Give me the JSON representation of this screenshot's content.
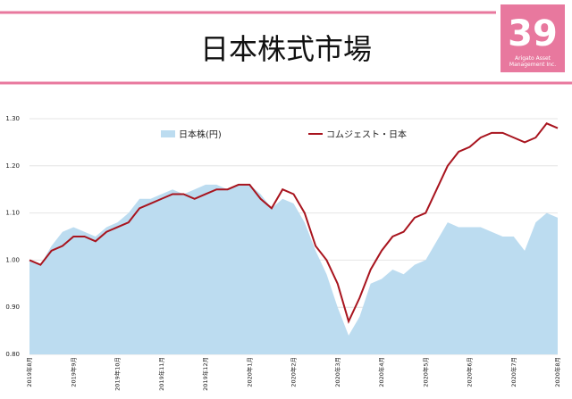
{
  "header": {
    "title": "日本株式市場",
    "logo_number": "39",
    "logo_text": "Arigato Asset Management Inc."
  },
  "chart_data": {
    "type": "line",
    "categories": [
      "2019年8月",
      null,
      null,
      null,
      "2019年9月",
      null,
      null,
      null,
      "2019年10月",
      null,
      null,
      null,
      "2019年11月",
      null,
      null,
      null,
      "2019年12月",
      null,
      null,
      null,
      "2020年1月",
      null,
      null,
      null,
      "2020年2月",
      null,
      null,
      null,
      "2020年3月",
      null,
      null,
      null,
      "2020年4月",
      null,
      null,
      null,
      "2020年5月",
      null,
      null,
      null,
      "2020年6月",
      null,
      null,
      null,
      "2020年7月",
      null,
      null,
      null,
      "2020年8月"
    ],
    "series": [
      {
        "name": "日本株(円)",
        "kind": "area",
        "color": "#bcdcf0",
        "values": [
          1.0,
          0.99,
          1.03,
          1.06,
          1.07,
          1.06,
          1.05,
          1.07,
          1.08,
          1.1,
          1.13,
          1.13,
          1.14,
          1.15,
          1.14,
          1.15,
          1.16,
          1.16,
          1.15,
          1.16,
          1.16,
          1.14,
          1.11,
          1.13,
          1.12,
          1.08,
          1.02,
          0.97,
          0.9,
          0.84,
          0.88,
          0.95,
          0.96,
          0.98,
          0.97,
          0.99,
          1.0,
          1.04,
          1.08,
          1.07,
          1.07,
          1.07,
          1.06,
          1.05,
          1.05,
          1.02,
          1.08,
          1.1,
          1.09
        ]
      },
      {
        "name": "コムジェスト・日本",
        "kind": "line",
        "color": "#a8141e",
        "values": [
          1.0,
          0.99,
          1.02,
          1.03,
          1.05,
          1.05,
          1.04,
          1.06,
          1.07,
          1.08,
          1.11,
          1.12,
          1.13,
          1.14,
          1.14,
          1.13,
          1.14,
          1.15,
          1.15,
          1.16,
          1.16,
          1.13,
          1.11,
          1.15,
          1.14,
          1.1,
          1.03,
          1.0,
          0.95,
          0.87,
          0.92,
          0.98,
          1.02,
          1.05,
          1.06,
          1.09,
          1.1,
          1.15,
          1.2,
          1.23,
          1.24,
          1.26,
          1.27,
          1.27,
          1.26,
          1.25,
          1.26,
          1.29,
          1.28
        ]
      }
    ],
    "ylim": [
      0.8,
      1.3
    ],
    "yticks": [
      {
        "value": 0.8,
        "label": "0.80"
      },
      {
        "value": 0.9,
        "label": "0.90"
      },
      {
        "value": 1.0,
        "label": "1.00"
      },
      {
        "value": 1.1,
        "label": "1.10"
      },
      {
        "value": 1.2,
        "label": "1.20"
      },
      {
        "value": 1.3,
        "label": "1.30"
      }
    ],
    "grid": true
  }
}
